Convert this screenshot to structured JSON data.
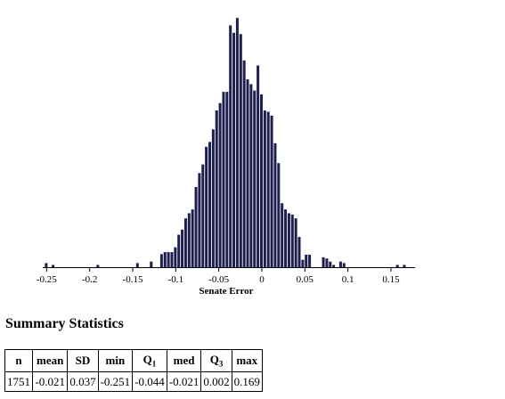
{
  "chart_data": {
    "type": "bar",
    "xlabel": "Senate Error",
    "ylabel": "",
    "x_ticks": [
      "-0.25",
      "-0.2",
      "-0.15",
      "-0.1",
      "-0.05",
      "0",
      "0.05",
      "0.1",
      "0.15"
    ],
    "x_tick_values": [
      -0.25,
      -0.2,
      -0.15,
      -0.1,
      -0.05,
      0,
      0.05,
      0.1,
      0.15
    ],
    "xlim": [
      -0.2545,
      0.178
    ],
    "ylim": [
      0,
      100
    ],
    "bar_color": "#1f1f4f",
    "bins": [
      {
        "x": -0.2505,
        "v": 1.6
      },
      {
        "x": -0.2425,
        "v": 0.9
      },
      {
        "x": -0.1905,
        "v": 0.9
      },
      {
        "x": -0.1445,
        "v": 1.6
      },
      {
        "x": -0.1285,
        "v": 2.2
      },
      {
        "x": -0.1165,
        "v": 5.1
      },
      {
        "x": -0.1125,
        "v": 5.9
      },
      {
        "x": -0.1085,
        "v": 5.9
      },
      {
        "x": -0.1045,
        "v": 5.9
      },
      {
        "x": -0.1005,
        "v": 7.8
      },
      {
        "x": -0.0965,
        "v": 12.7
      },
      {
        "x": -0.0925,
        "v": 14.7
      },
      {
        "x": -0.0885,
        "v": 19.1
      },
      {
        "x": -0.0845,
        "v": 21.1
      },
      {
        "x": -0.0805,
        "v": 22.6
      },
      {
        "x": -0.0765,
        "v": 31.4
      },
      {
        "x": -0.0725,
        "v": 36.8
      },
      {
        "x": -0.0685,
        "v": 40.2
      },
      {
        "x": -0.0645,
        "v": 47.1
      },
      {
        "x": -0.0605,
        "v": 49.0
      },
      {
        "x": -0.0565,
        "v": 53.9
      },
      {
        "x": -0.0525,
        "v": 61.3
      },
      {
        "x": -0.0485,
        "v": 64.2
      },
      {
        "x": -0.0445,
        "v": 68.6
      },
      {
        "x": -0.0405,
        "v": 68.6
      },
      {
        "x": -0.0365,
        "v": 94.6
      },
      {
        "x": -0.0325,
        "v": 91.7
      },
      {
        "x": -0.0285,
        "v": 97.5
      },
      {
        "x": -0.0245,
        "v": 91.2
      },
      {
        "x": -0.0205,
        "v": 80.9
      },
      {
        "x": -0.0165,
        "v": 73.5
      },
      {
        "x": -0.0125,
        "v": 71.6
      },
      {
        "x": -0.0085,
        "v": 69.1
      },
      {
        "x": -0.0045,
        "v": 78.9
      },
      {
        "x": -0.0005,
        "v": 67.6
      },
      {
        "x": 0.0035,
        "v": 61.3
      },
      {
        "x": 0.0075,
        "v": 60.8
      },
      {
        "x": 0.0115,
        "v": 59.3
      },
      {
        "x": 0.0155,
        "v": 48.5
      },
      {
        "x": 0.0195,
        "v": 40.7
      },
      {
        "x": 0.0235,
        "v": 25.0
      },
      {
        "x": 0.0275,
        "v": 22.6
      },
      {
        "x": 0.0315,
        "v": 21.1
      },
      {
        "x": 0.0355,
        "v": 20.6
      },
      {
        "x": 0.0395,
        "v": 19.1
      },
      {
        "x": 0.0435,
        "v": 11.8
      },
      {
        "x": 0.0475,
        "v": 2.9
      },
      {
        "x": 0.0515,
        "v": 4.9
      },
      {
        "x": 0.0555,
        "v": 4.9
      },
      {
        "x": 0.0715,
        "v": 3.9
      },
      {
        "x": 0.0755,
        "v": 3.4
      },
      {
        "x": 0.0795,
        "v": 2.2
      },
      {
        "x": 0.0835,
        "v": 0.9
      },
      {
        "x": 0.0915,
        "v": 2.2
      },
      {
        "x": 0.0955,
        "v": 1.6
      },
      {
        "x": 0.1575,
        "v": 0.9
      },
      {
        "x": 0.1655,
        "v": 0.9
      }
    ]
  },
  "summary": {
    "title": "Summary Statistics",
    "headers": {
      "n": "n",
      "mean": "mean",
      "sd": "SD",
      "min": "min",
      "q1_main": "Q",
      "q1_sub": "1",
      "med": "med",
      "q3_main": "Q",
      "q3_sub": "3",
      "max": "max"
    },
    "values": {
      "n": "1751",
      "mean": "-0.021",
      "sd": "0.037",
      "min": "-0.251",
      "q1": "-0.044",
      "med": "-0.021",
      "q3": "0.002",
      "max": "0.169"
    }
  }
}
